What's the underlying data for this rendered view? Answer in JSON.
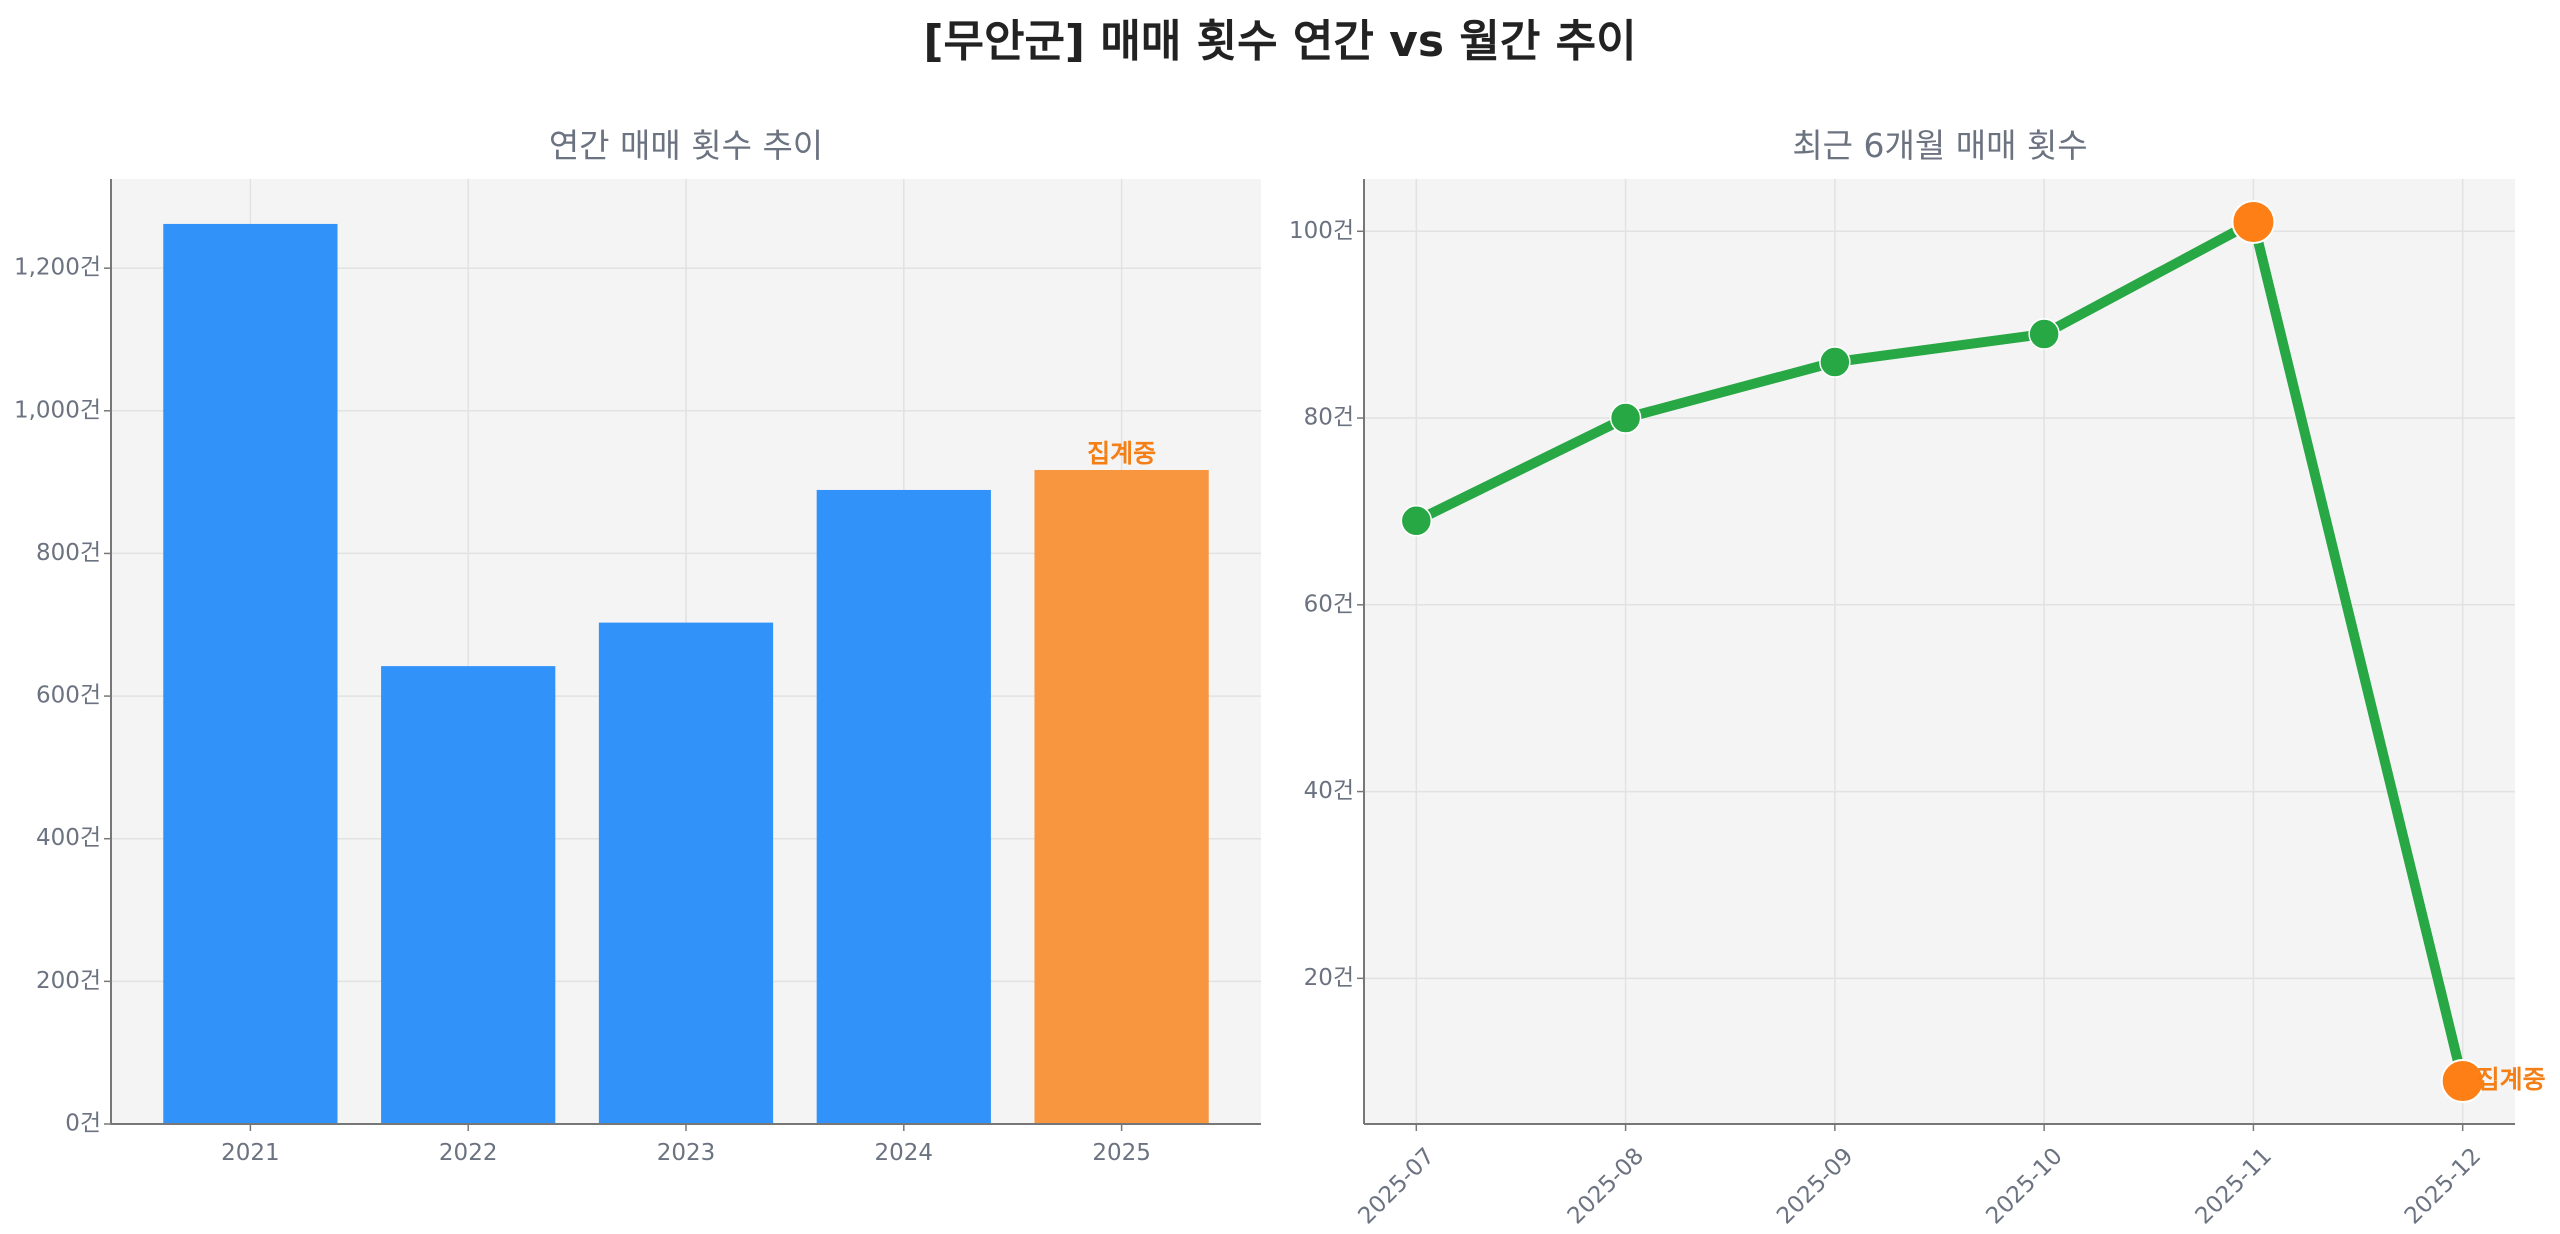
{
  "title": "[무안군] 매매 횟수 연간 vs 월간 추이",
  "chart_data": [
    {
      "type": "bar",
      "title": "연간 매매 횟수 추이",
      "categories": [
        "2021",
        "2022",
        "2023",
        "2024",
        "2025"
      ],
      "values": [
        1262,
        642,
        703,
        889,
        917
      ],
      "ylim": [
        0,
        1325
      ],
      "yticks": [
        0,
        200,
        400,
        600,
        800,
        1000,
        1200
      ],
      "ytick_labels": [
        "0건",
        "200건",
        "400건",
        "600건",
        "800건",
        "1,000건",
        "1,200건"
      ],
      "bar_color": "#3192f9",
      "highlight_color": "#f8963f",
      "highlight_index": 4,
      "annotation": "집계중",
      "annotation_color": "#f47f17",
      "grid": true
    },
    {
      "type": "line",
      "title": "최근 6개월 매매 횟수",
      "categories": [
        "2025-07",
        "2025-08",
        "2025-09",
        "2025-10",
        "2025-11",
        "2025-12"
      ],
      "values": [
        69,
        80,
        86,
        89,
        101,
        9
      ],
      "ylim": [
        4.4,
        105.6
      ],
      "yticks": [
        20,
        40,
        60,
        80,
        100
      ],
      "ytick_labels": [
        "20건",
        "40건",
        "60건",
        "80건",
        "100건"
      ],
      "line_color": "#28a745",
      "highlight_color": "#fd7f16",
      "highlight_indices": [
        4,
        5
      ],
      "annotation": "집계중",
      "annotation_color": "#f47f17",
      "grid": true
    }
  ]
}
